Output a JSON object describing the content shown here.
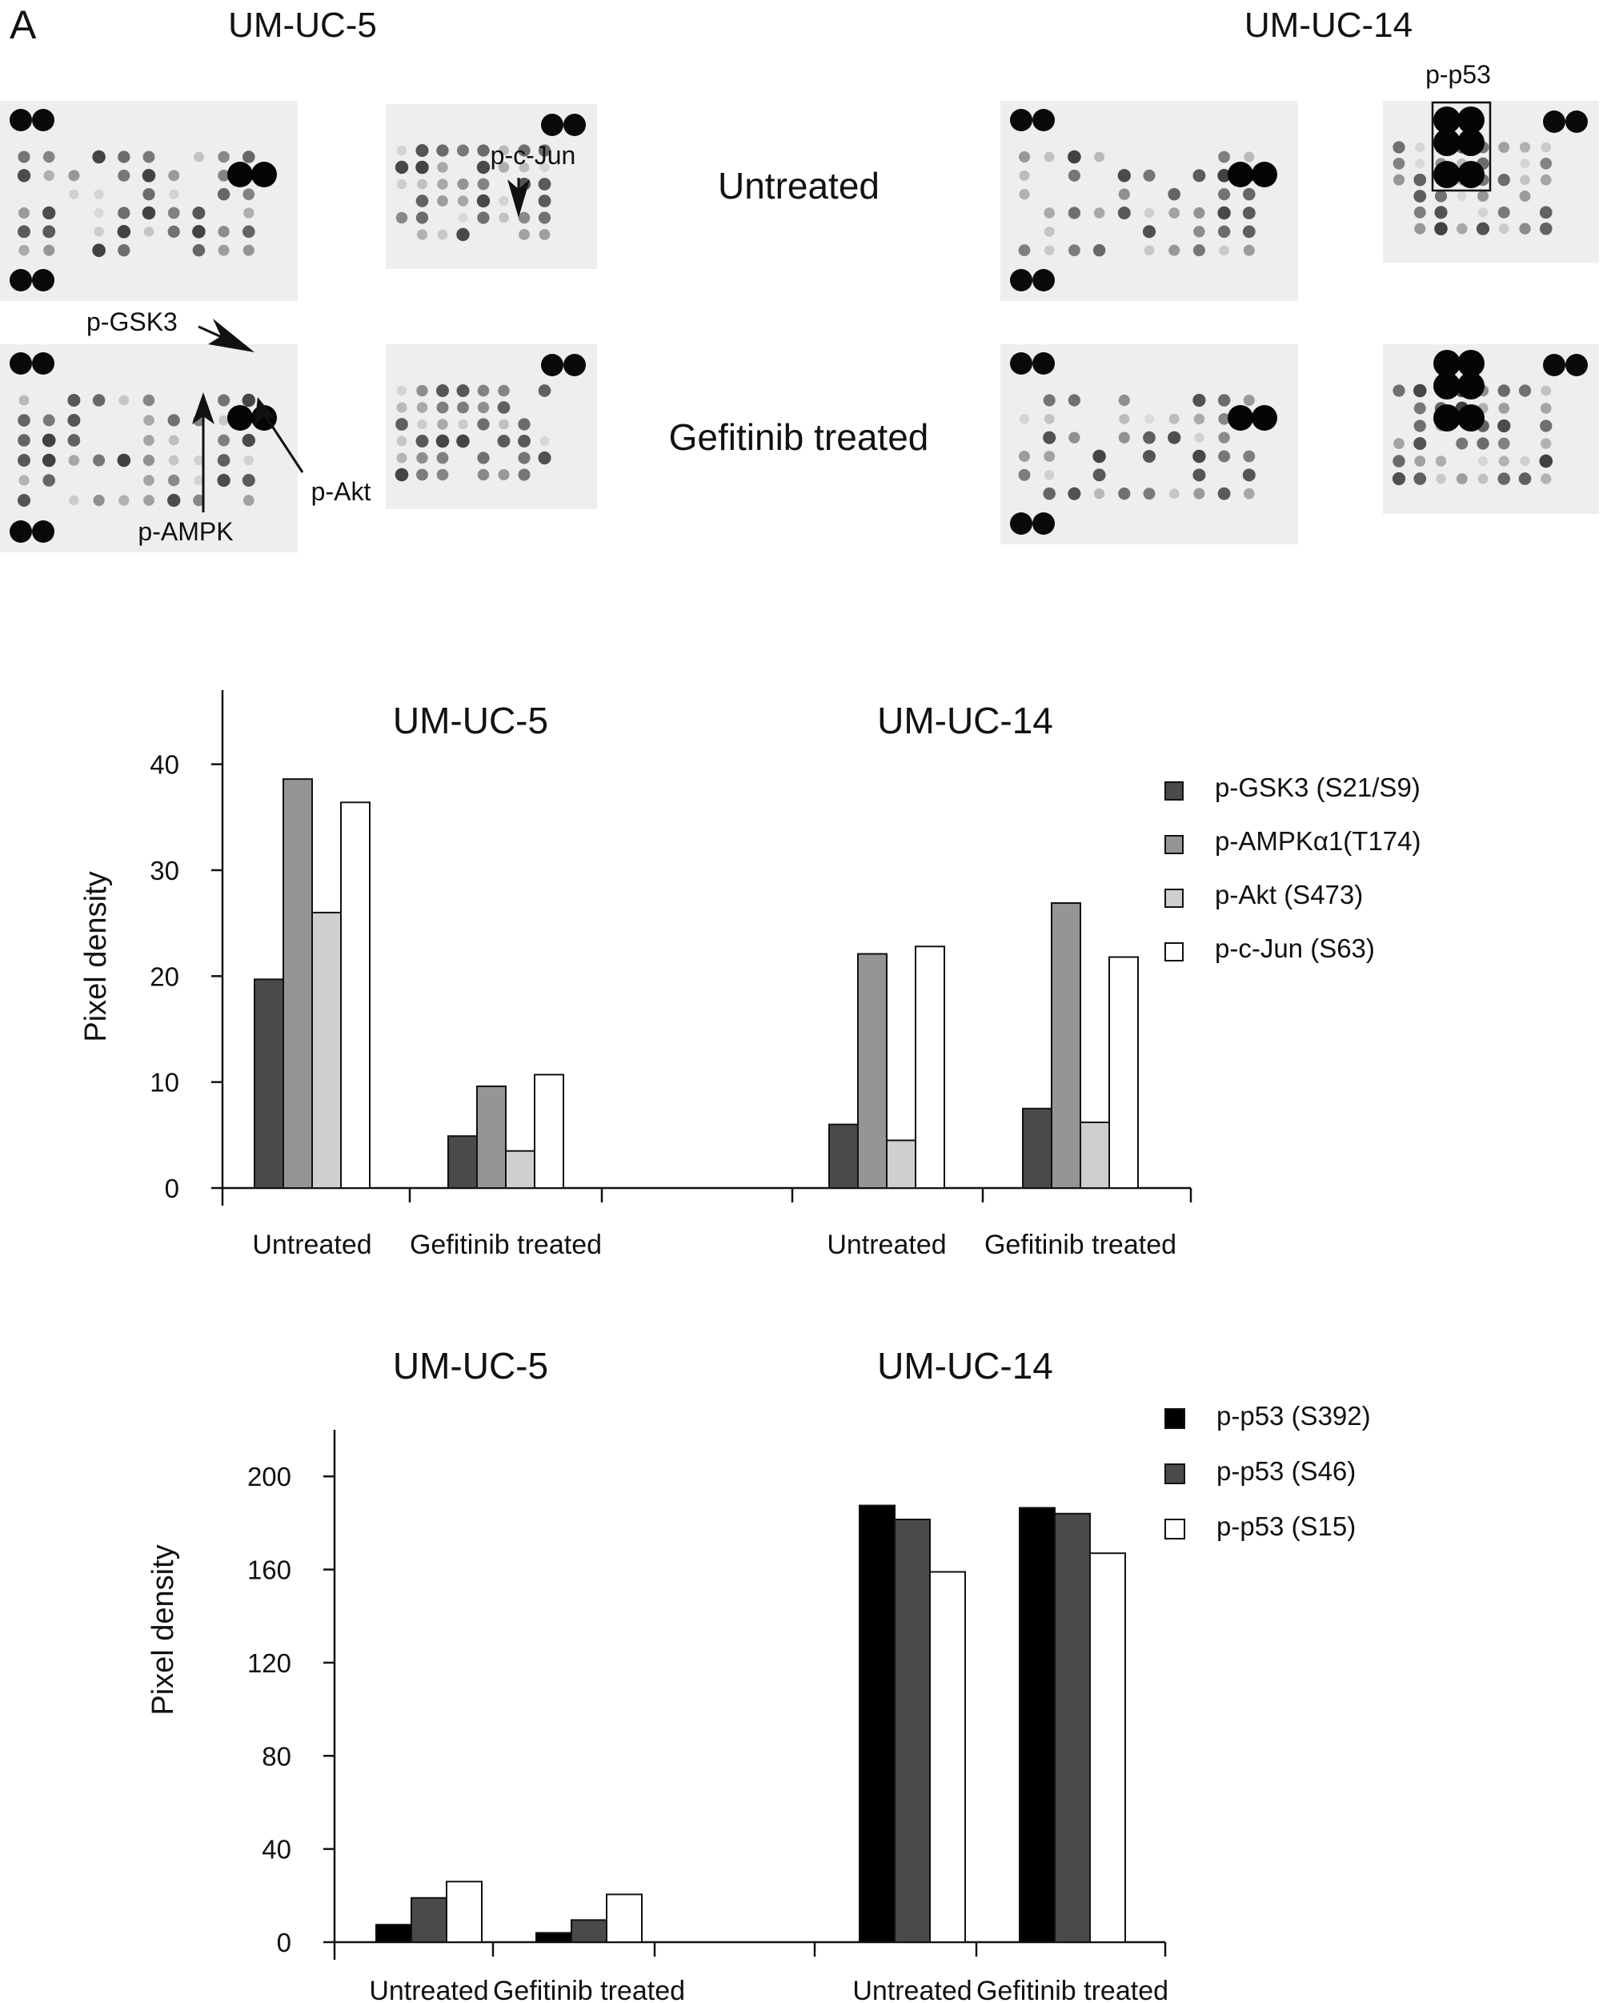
{
  "panel_label": "A",
  "blots": {
    "cell_lines": [
      "UM-UC-5",
      "UM-UC-14"
    ],
    "rows": [
      "Untreated",
      "Gefitinib treated"
    ],
    "annotations": [
      "p-c-Jun",
      "p-GSK3",
      "p-AMPK",
      "p-Akt",
      "p-p53"
    ]
  },
  "chart_data": [
    {
      "type": "bar",
      "group_titles": [
        "UM-UC-5",
        "UM-UC-14"
      ],
      "categories": [
        "Untreated",
        "Gefitinib treated",
        "Untreated",
        "Gefitinib treated"
      ],
      "ylabel": "Pixel density",
      "ylim": [
        0,
        47
      ],
      "yticks": [
        0,
        10,
        20,
        30,
        40
      ],
      "legend_position": "right",
      "series": [
        {
          "name": "p-GSK3 (S21/S9)",
          "color": "#4a4a4a",
          "values": [
            19.7,
            4.9,
            6.0,
            7.5
          ]
        },
        {
          "name": "p-AMPKα1(T174)",
          "color": "#959595",
          "values": [
            38.6,
            9.6,
            22.1,
            26.9
          ]
        },
        {
          "name": "p-Akt (S473)",
          "color": "#cfcfcf",
          "values": [
            26.0,
            3.5,
            4.5,
            6.2
          ]
        },
        {
          "name": "p-c-Jun (S63)",
          "color": "#ffffff",
          "values": [
            36.4,
            10.7,
            22.8,
            21.8
          ]
        }
      ]
    },
    {
      "type": "bar",
      "group_titles": [
        "UM-UC-5",
        "UM-UC-14"
      ],
      "categories": [
        "Untreated",
        "Gefitinib treated",
        "Untreated",
        "Gefitinib treated"
      ],
      "ylabel": "Pixel density",
      "ylim": [
        0,
        220
      ],
      "yticks": [
        0,
        40,
        80,
        120,
        160,
        200
      ],
      "legend_position": "top-right",
      "series": [
        {
          "name": "p-p53 (S392)",
          "color": "#000000",
          "values": [
            7.5,
            4.0,
            187.5,
            186.5
          ]
        },
        {
          "name": "p-p53 (S46)",
          "color": "#4a4a4a",
          "values": [
            19.0,
            9.5,
            181.5,
            184.0
          ]
        },
        {
          "name": "p-p53 (S15)",
          "color": "#ffffff",
          "values": [
            26.0,
            20.5,
            159.0,
            167.0
          ]
        }
      ]
    }
  ]
}
